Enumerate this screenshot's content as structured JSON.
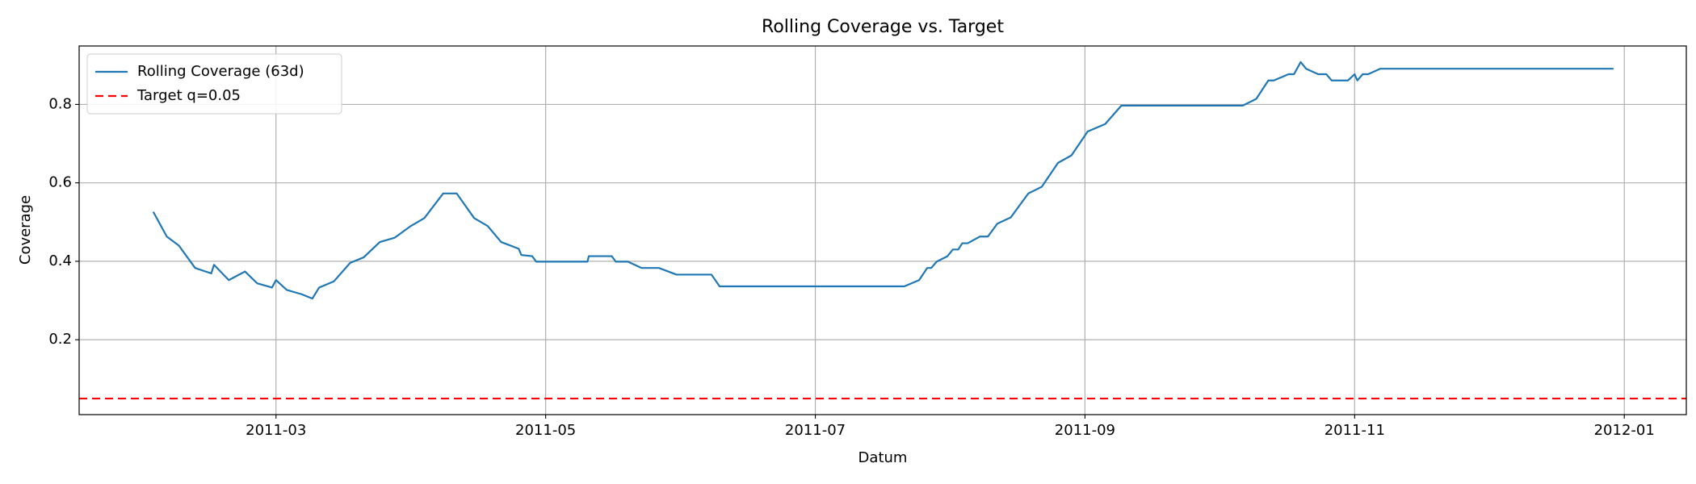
{
  "chart_data": {
    "type": "line",
    "title": "Rolling Coverage vs. Target",
    "xlabel": "Datum",
    "ylabel": "Coverage",
    "x": [
      1.09,
      1.19,
      1.28,
      1.4,
      1.52,
      1.54,
      1.65,
      1.77,
      1.86,
      1.97,
      2.0,
      2.08,
      2.19,
      2.27,
      2.32,
      2.43,
      2.55,
      2.65,
      2.77,
      2.88,
      3.0,
      3.1,
      3.24,
      3.34,
      3.47,
      3.57,
      3.67,
      3.8,
      3.82,
      3.9,
      3.93,
      4.31,
      4.32,
      4.49,
      4.52,
      4.61,
      4.71,
      4.84,
      4.97,
      5.23,
      5.29,
      6.66,
      6.77,
      6.83,
      6.86,
      6.9,
      6.98,
      7.02,
      7.06,
      7.09,
      7.13,
      7.22,
      7.28,
      7.35,
      7.45,
      7.58,
      7.68,
      7.8,
      7.9,
      8.02,
      8.15,
      8.27,
      9.17,
      9.27,
      9.36,
      9.4,
      9.51,
      9.55,
      9.6,
      9.64,
      9.73,
      9.79,
      9.83,
      9.95,
      10.0,
      10.02,
      10.06,
      10.1,
      10.19,
      11.92
    ],
    "series": [
      {
        "name": "Rolling Coverage (63d)",
        "color": "#1f77b4",
        "values": [
          0.526,
          0.463,
          0.44,
          0.383,
          0.369,
          0.391,
          0.352,
          0.374,
          0.344,
          0.333,
          0.352,
          0.327,
          0.316,
          0.305,
          0.333,
          0.349,
          0.396,
          0.41,
          0.449,
          0.46,
          0.49,
          0.51,
          0.573,
          0.573,
          0.51,
          0.49,
          0.449,
          0.432,
          0.416,
          0.413,
          0.399,
          0.399,
          0.413,
          0.413,
          0.399,
          0.399,
          0.383,
          0.383,
          0.366,
          0.366,
          0.336,
          0.336,
          0.352,
          0.383,
          0.383,
          0.399,
          0.413,
          0.43,
          0.43,
          0.446,
          0.446,
          0.463,
          0.463,
          0.496,
          0.512,
          0.573,
          0.59,
          0.651,
          0.67,
          0.731,
          0.75,
          0.797,
          0.797,
          0.814,
          0.861,
          0.861,
          0.877,
          0.877,
          0.908,
          0.891,
          0.877,
          0.877,
          0.861,
          0.861,
          0.877,
          0.861,
          0.877,
          0.877,
          0.891,
          0.891
        ]
      }
    ],
    "reference_line": {
      "name": "Target q=0.05",
      "color": "#ff0000",
      "value": 0.05,
      "style": "dashed"
    },
    "xlim": [
      0.54,
      12.46
    ],
    "xticks": [
      {
        "value": 2,
        "label": "2011-03"
      },
      {
        "value": 4,
        "label": "2011-05"
      },
      {
        "value": 6,
        "label": "2011-07"
      },
      {
        "value": 8,
        "label": "2011-09"
      },
      {
        "value": 10,
        "label": "2011-11"
      },
      {
        "value": 12,
        "label": "2012-01"
      }
    ],
    "ylim": [
      0.009,
      0.949
    ],
    "yticks": [
      0.2,
      0.4,
      0.6,
      0.8
    ],
    "grid": true,
    "legend": "upper-left"
  }
}
